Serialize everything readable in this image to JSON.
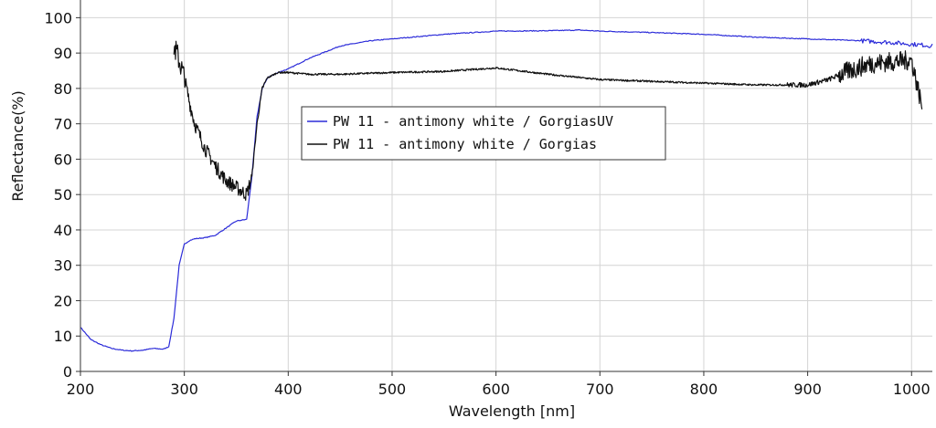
{
  "chart_data": {
    "type": "line",
    "xlabel": "Wavelength [nm]",
    "ylabel": "Reflectance(%)",
    "xlim": [
      200,
      1020
    ],
    "ylim": [
      0,
      105
    ],
    "x_ticks": [
      200,
      300,
      400,
      500,
      600,
      700,
      800,
      900,
      1000
    ],
    "y_ticks": [
      0,
      10,
      20,
      30,
      40,
      50,
      60,
      70,
      80,
      90,
      100
    ],
    "grid": true,
    "legend_position": "center-left",
    "series": [
      {
        "name": "PW 11 - antimony white / GorgiasUV",
        "color": "#2b2bd9",
        "x": [
          200,
          210,
          220,
          230,
          240,
          250,
          260,
          270,
          280,
          285,
          290,
          295,
          300,
          305,
          310,
          320,
          330,
          340,
          350,
          360,
          365,
          370,
          375,
          380,
          390,
          400,
          420,
          450,
          480,
          500,
          550,
          600,
          650,
          680,
          700,
          750,
          800,
          850,
          900,
          950,
          980,
          1000,
          1010,
          1020
        ],
        "y": [
          12.5,
          9.0,
          7.5,
          6.5,
          6.0,
          5.8,
          6.0,
          6.5,
          6.3,
          7.0,
          15.0,
          30.0,
          36.0,
          37.0,
          37.5,
          37.8,
          38.5,
          40.5,
          42.5,
          43.0,
          55.0,
          72.0,
          80.0,
          83.0,
          84.5,
          85.5,
          88.5,
          92.0,
          93.5,
          94.0,
          95.3,
          96.2,
          96.3,
          96.5,
          96.2,
          95.8,
          95.3,
          94.5,
          94.0,
          93.5,
          93.0,
          92.5,
          92.3,
          92.0
        ]
      },
      {
        "name": "PW 11 - antimony white / Gorgias",
        "color": "#111111",
        "x": [
          290,
          295,
          300,
          305,
          310,
          320,
          330,
          340,
          350,
          360,
          365,
          370,
          375,
          380,
          390,
          400,
          420,
          450,
          500,
          550,
          600,
          650,
          700,
          750,
          800,
          850,
          900,
          920,
          940,
          950,
          960,
          980,
          1000,
          1010
        ],
        "y": [
          92,
          88,
          83,
          76,
          70,
          63,
          58,
          54,
          52,
          50,
          55,
          70,
          80,
          83,
          84.5,
          84.5,
          84.0,
          84.0,
          84.5,
          84.8,
          85.8,
          84.0,
          82.5,
          82.0,
          81.5,
          81.0,
          81.0,
          82.5,
          85.0,
          86.0,
          87.0,
          87.5,
          88.0,
          75.0
        ]
      }
    ]
  }
}
